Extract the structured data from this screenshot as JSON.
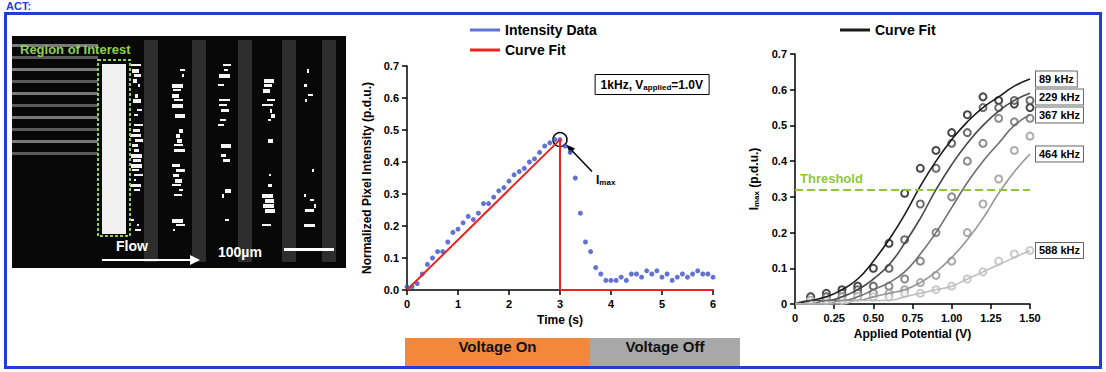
{
  "header": "ACT:",
  "image_panel": {
    "region_label": "Region of Interest",
    "region_color": "#8fd14f",
    "flow_label": "Flow",
    "scale_label": "100µm"
  },
  "chart_data": [
    {
      "type": "scatter",
      "x_label": "Time (s)",
      "y_label": "Normalized Pixel Intensity (p.d.u.)",
      "xlim": [
        0,
        6
      ],
      "xticks": [
        0,
        1,
        2,
        3,
        4,
        5,
        6
      ],
      "ylim": [
        0,
        0.7
      ],
      "yticks": [
        {
          "value": 0,
          "label": "0.0"
        },
        0.1,
        0.2,
        0.3,
        0.4,
        0.5,
        0.6,
        0.7
      ],
      "grid": false,
      "legend": "top",
      "annotation_box": {
        "text": "1kHz, V",
        "subscript": "applied",
        "after": "=1.0V"
      },
      "annotation": {
        "text": "I",
        "subscript": "max",
        "x": 3,
        "y": 0.47
      },
      "series": [
        {
          "name": "Intensity Data",
          "type": "scatter",
          "color": "#3a4fc8",
          "marker": "circle",
          "x": [
            0,
            0.1,
            0.2,
            0.3,
            0.4,
            0.5,
            0.6,
            0.7,
            0.8,
            0.9,
            1,
            1.1,
            1.2,
            1.3,
            1.4,
            1.5,
            1.6,
            1.7,
            1.8,
            1.9,
            2,
            2.1,
            2.2,
            2.3,
            2.4,
            2.5,
            2.6,
            2.7,
            2.8,
            2.9,
            3,
            3.1,
            3.2,
            3.3,
            3.4,
            3.5,
            3.6,
            3.7,
            3.8,
            3.9,
            4,
            4.1,
            4.2,
            4.3,
            4.4,
            4.5,
            4.6,
            4.7,
            4.8,
            4.9,
            5,
            5.1,
            5.2,
            5.3,
            5.4,
            5.5,
            5.6,
            5.7,
            5.8,
            5.9,
            6
          ],
          "values": [
            0.01,
            0.01,
            0.02,
            0.05,
            0.08,
            0.1,
            0.12,
            0.12,
            0.15,
            0.18,
            0.19,
            0.21,
            0.23,
            0.22,
            0.24,
            0.27,
            0.27,
            0.29,
            0.31,
            0.32,
            0.34,
            0.36,
            0.37,
            0.38,
            0.4,
            0.41,
            0.43,
            0.45,
            0.46,
            0.47,
            0.47,
            0.45,
            0.43,
            0.35,
            0.24,
            0.15,
            0.12,
            0.07,
            0.05,
            0.03,
            0.03,
            0.03,
            0.04,
            0.03,
            0.05,
            0.05,
            0.04,
            0.06,
            0.05,
            0.06,
            0.04,
            0.05,
            0.03,
            0.04,
            0.05,
            0.04,
            0.05,
            0.06,
            0.05,
            0.05,
            0.04
          ]
        },
        {
          "name": "Curve Fit",
          "type": "line",
          "color": "#e8261f",
          "line_style": "solid",
          "x": [
            0,
            3,
            3,
            6
          ],
          "values": [
            0,
            0.47,
            0,
            0
          ]
        }
      ]
    },
    {
      "type": "scatter",
      "x_label": "Applied Potential (V)",
      "y_label": {
        "text": "I",
        "subscript": "max",
        "after": " (p.d.u.)"
      },
      "xlim": [
        0,
        1.5
      ],
      "xticks": [
        0,
        0.25,
        {
          "value": 0.5,
          "label": "0.50"
        },
        0.75,
        {
          "value": 1,
          "label": "1.00"
        },
        1.25,
        {
          "value": 1.5,
          "label": "1.50"
        }
      ],
      "ylim": [
        0,
        0.7
      ],
      "yticks": [
        0,
        0.1,
        0.2,
        0.3,
        0.4,
        0.5,
        0.6,
        0.7
      ],
      "grid": false,
      "legend": "top",
      "fit_legend": "Curve Fit",
      "threshold": {
        "value": 0.315,
        "label": "Threshold",
        "color": "#8dc63f",
        "line_style": "dashed"
      },
      "fit_x": [
        0,
        0.1,
        0.2,
        0.3,
        0.4,
        0.5,
        0.6,
        0.7,
        0.8,
        0.9,
        1,
        1.1,
        1.2,
        1.3,
        1.4,
        1.5
      ],
      "series": [
        {
          "name": "89 kHz",
          "color": "#1a1a1a",
          "marker": "open_circle",
          "x": [
            0.1,
            0.2,
            0.3,
            0.4,
            0.5,
            0.6,
            0.7,
            0.8,
            0.9,
            1,
            1.1,
            1.2,
            1.3,
            1.4,
            1.5
          ],
          "values": [
            0.02,
            0.03,
            0.04,
            0.05,
            0.1,
            0.17,
            0.31,
            0.38,
            0.43,
            0.48,
            0.53,
            0.58,
            0.57,
            0.56,
            0.55
          ],
          "fit": [
            0.0,
            0.01,
            0.02,
            0.04,
            0.07,
            0.12,
            0.18,
            0.25,
            0.33,
            0.4,
            0.46,
            0.51,
            0.55,
            0.58,
            0.61,
            0.63
          ]
        },
        {
          "name": "229 kHz",
          "color": "#474747",
          "marker": "open_circle",
          "x": [
            0.1,
            0.2,
            0.3,
            0.4,
            0.5,
            0.6,
            0.7,
            0.8,
            0.9,
            1,
            1.1,
            1.2,
            1.3,
            1.4,
            1.5
          ],
          "values": [
            0.02,
            0.02,
            0.03,
            0.04,
            0.05,
            0.1,
            0.18,
            0.28,
            0.38,
            0.45,
            0.48,
            0.55,
            0.55,
            0.57,
            0.57
          ],
          "fit": [
            0.0,
            0.01,
            0.01,
            0.02,
            0.04,
            0.07,
            0.11,
            0.17,
            0.24,
            0.32,
            0.39,
            0.45,
            0.5,
            0.54,
            0.57,
            0.59
          ]
        },
        {
          "name": "367 kHz",
          "color": "#6e6e6e",
          "marker": "open_circle",
          "x": [
            0.1,
            0.2,
            0.3,
            0.4,
            0.5,
            0.6,
            0.7,
            0.8,
            0.9,
            1,
            1.1,
            1.2,
            1.3,
            1.4,
            1.5
          ],
          "values": [
            0.01,
            0.02,
            0.02,
            0.03,
            0.03,
            0.05,
            0.07,
            0.12,
            0.2,
            0.3,
            0.4,
            0.45,
            0.52,
            0.51,
            0.52
          ],
          "fit": [
            0.0,
            0.0,
            0.01,
            0.01,
            0.02,
            0.04,
            0.06,
            0.09,
            0.14,
            0.2,
            0.27,
            0.34,
            0.4,
            0.45,
            0.5,
            0.53
          ]
        },
        {
          "name": "464 kHz",
          "color": "#969696",
          "marker": "open_circle",
          "x": [
            0.1,
            0.2,
            0.3,
            0.4,
            0.5,
            0.6,
            0.7,
            0.8,
            0.9,
            1,
            1.1,
            1.2,
            1.3,
            1.4,
            1.5
          ],
          "values": [
            0.01,
            0.01,
            0.02,
            0.02,
            0.03,
            0.03,
            0.04,
            0.06,
            0.08,
            0.12,
            0.2,
            0.28,
            0.35,
            0.43,
            0.47
          ],
          "fit": [
            0,
            0,
            0,
            0.01,
            0.01,
            0.02,
            0.03,
            0.04,
            0.06,
            0.09,
            0.13,
            0.18,
            0.24,
            0.31,
            0.37,
            0.42
          ]
        },
        {
          "name": "588 kHz",
          "color": "#bdbdbd",
          "marker": "open_circle",
          "x": [
            0.1,
            0.2,
            0.3,
            0.4,
            0.5,
            0.6,
            0.7,
            0.8,
            0.9,
            1,
            1.1,
            1.2,
            1.3,
            1.4,
            1.5
          ],
          "values": [
            0.01,
            0.01,
            0.01,
            0.02,
            0.02,
            0.02,
            0.03,
            0.03,
            0.04,
            0.05,
            0.07,
            0.09,
            0.12,
            0.14,
            0.15
          ],
          "fit": [
            0,
            0,
            0,
            0,
            0.01,
            0.01,
            0.01,
            0.02,
            0.03,
            0.04,
            0.05,
            0.07,
            0.09,
            0.11,
            0.13,
            0.15
          ]
        }
      ]
    }
  ],
  "voltage_bar": [
    {
      "label": "Voltage On",
      "color": "#f4883a"
    },
    {
      "label": "Voltage Off",
      "color": "#a8a8a8"
    }
  ]
}
